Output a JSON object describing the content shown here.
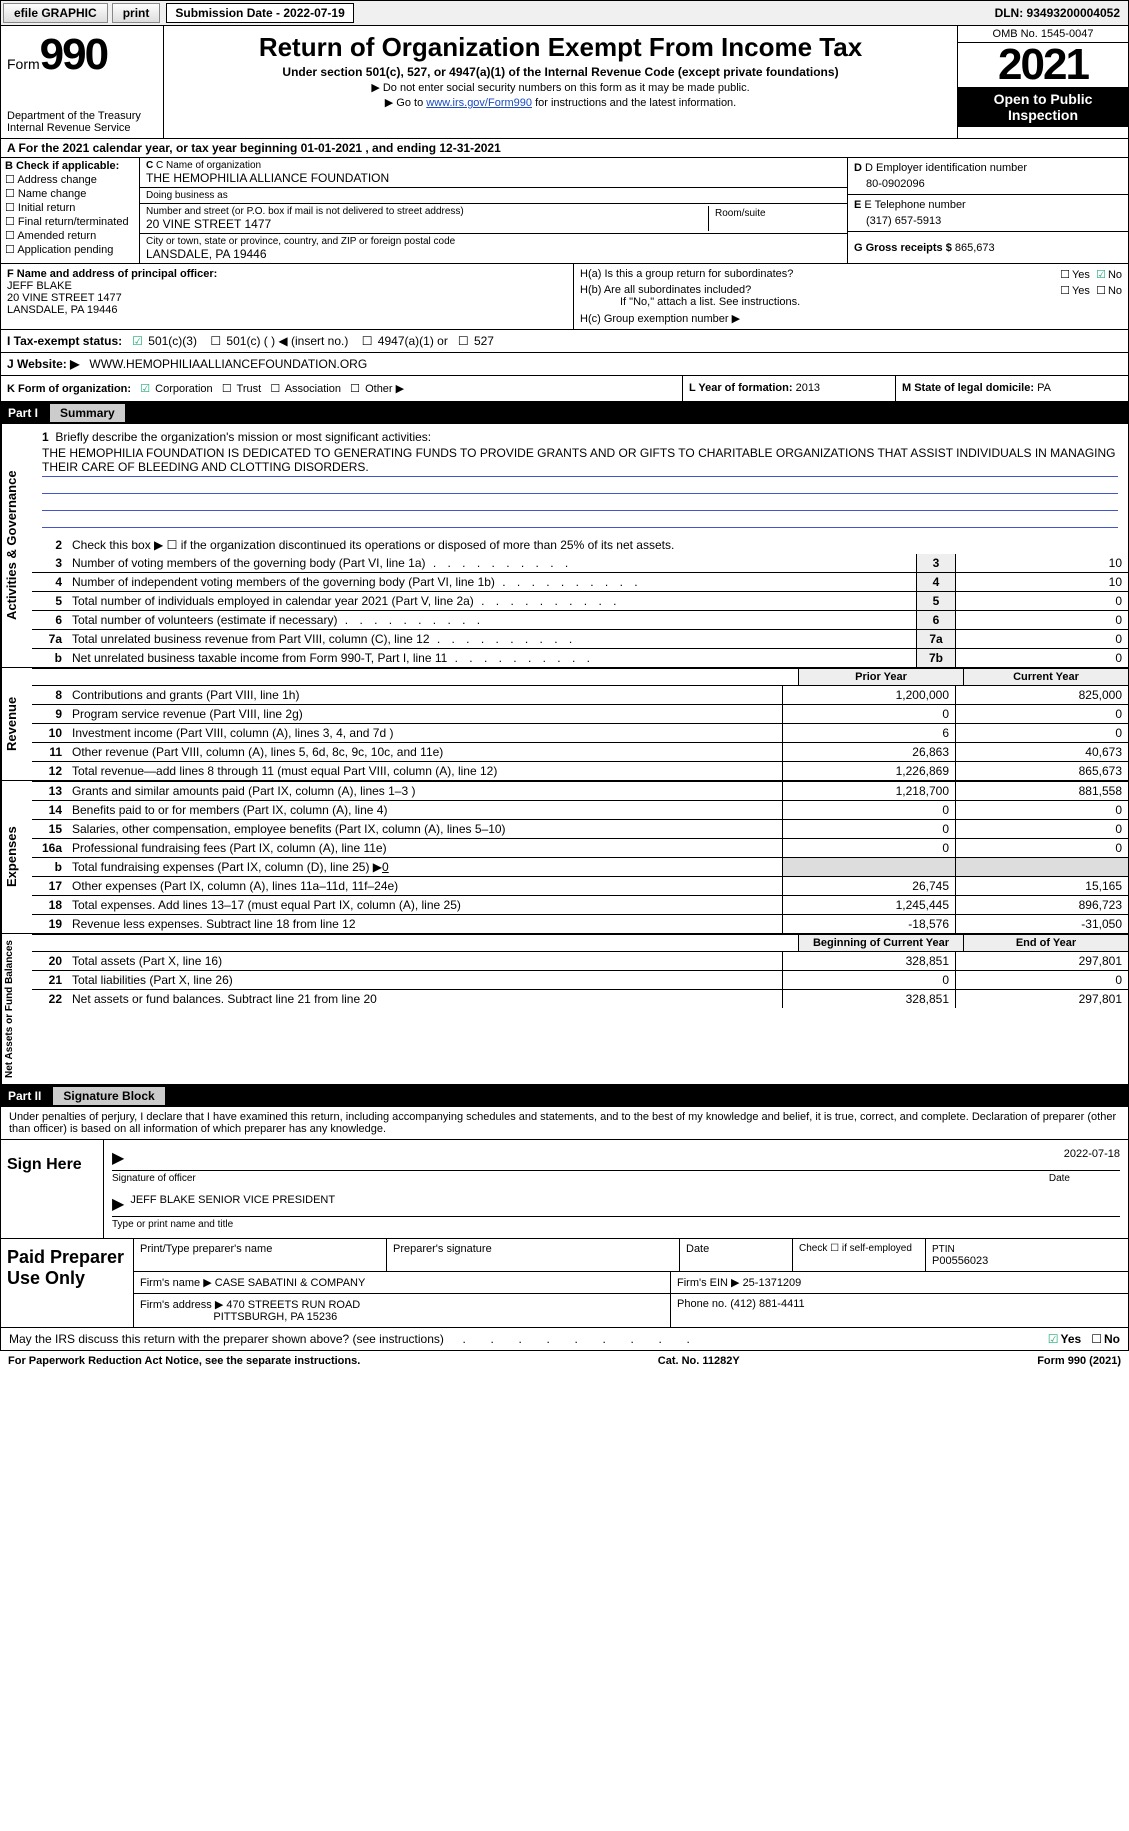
{
  "topbar": {
    "efile": "efile GRAPHIC",
    "print": "print",
    "sub_label": "Submission Date - 2022-07-19",
    "dln": "DLN: 93493200004052"
  },
  "header": {
    "form_word": "Form",
    "form_num": "990",
    "dept": "Department of the Treasury\nInternal Revenue Service",
    "title": "Return of Organization Exempt From Income Tax",
    "sub1": "Under section 501(c), 527, or 4947(a)(1) of the Internal Revenue Code (except private foundations)",
    "sub2a": "Do not enter social security numbers on this form as it may be made public.",
    "sub2b_pre": "Go to ",
    "sub2b_link": "www.irs.gov/Form990",
    "sub2b_post": " for instructions and the latest information.",
    "omb": "OMB No. 1545-0047",
    "year": "2021",
    "open": "Open to Public Inspection"
  },
  "rowA": "A For the 2021 calendar year, or tax year beginning 01-01-2021   , and ending 12-31-2021",
  "sectionB": {
    "label": "B Check if applicable:",
    "opts": [
      "Address change",
      "Name change",
      "Initial return",
      "Final return/terminated",
      "Amended return",
      "Application pending"
    ],
    "c_label": "C Name of organization",
    "org_name": "THE HEMOPHILIA ALLIANCE FOUNDATION",
    "dba_label": "Doing business as",
    "dba": "",
    "addr_label": "Number and street (or P.O. box if mail is not delivered to street address)",
    "room_label": "Room/suite",
    "addr": "20 VINE STREET 1477",
    "city_label": "City or town, state or province, country, and ZIP or foreign postal code",
    "city": "LANSDALE, PA  19446",
    "d_label": "D Employer identification number",
    "ein": "80-0902096",
    "e_label": "E Telephone number",
    "phone": "(317) 657-5913",
    "g_label": "G Gross receipts $",
    "gross": "865,673"
  },
  "sectionFH": {
    "f_label": "F Name and address of principal officer:",
    "officer_name": "JEFF BLAKE",
    "officer_addr1": "20 VINE STREET 1477",
    "officer_addr2": "LANSDALE, PA  19446",
    "h_a": "H(a)  Is this a group return for subordinates?",
    "h_b": "H(b)  Are all subordinates included?",
    "h_b_note": "If \"No,\" attach a list. See instructions.",
    "h_c": "H(c)  Group exemption number ▶",
    "yes": "Yes",
    "no": "No"
  },
  "rowI": {
    "label": "I  Tax-exempt status:",
    "o1": "501(c)(3)",
    "o2": "501(c) (  ) ◀ (insert no.)",
    "o3": "4947(a)(1) or",
    "o4": "527"
  },
  "rowJ": {
    "label": "J  Website: ▶",
    "value": "WWW.HEMOPHILIAALLIANCEFOUNDATION.ORG"
  },
  "rowKLM": {
    "k_label": "K Form of organization:",
    "k_opts": [
      "Corporation",
      "Trust",
      "Association",
      "Other ▶"
    ],
    "l_label": "L Year of formation:",
    "l_val": "2013",
    "m_label": "M State of legal domicile:",
    "m_val": "PA"
  },
  "part1": {
    "header_num": "Part I",
    "header_title": "Summary",
    "section_ag": "Activities & Governance",
    "section_rev": "Revenue",
    "section_exp": "Expenses",
    "section_na": "Net Assets or Fund Balances",
    "line1_label": "Briefly describe the organization's mission or most significant activities:",
    "mission": "THE HEMOPHILIA FOUNDATION IS DEDICATED TO GENERATING FUNDS TO PROVIDE GRANTS AND OR GIFTS TO CHARITABLE ORGANIZATIONS THAT ASSIST INDIVIDUALS IN MANAGING THEIR CARE OF BLEEDING AND CLOTTING DISORDERS.",
    "line2": "Check this box ▶ ☐  if the organization discontinued its operations or disposed of more than 25% of its net assets.",
    "rows_single": [
      {
        "n": "3",
        "d": "Number of voting members of the governing body (Part VI, line 1a)",
        "box": "3",
        "v": "10"
      },
      {
        "n": "4",
        "d": "Number of independent voting members of the governing body (Part VI, line 1b)",
        "box": "4",
        "v": "10"
      },
      {
        "n": "5",
        "d": "Total number of individuals employed in calendar year 2021 (Part V, line 2a)",
        "box": "5",
        "v": "0"
      },
      {
        "n": "6",
        "d": "Total number of volunteers (estimate if necessary)",
        "box": "6",
        "v": "0"
      },
      {
        "n": "7a",
        "d": "Total unrelated business revenue from Part VIII, column (C), line 12",
        "box": "7a",
        "v": "0"
      },
      {
        "n": "b",
        "d": "Net unrelated business taxable income from Form 990-T, Part I, line 11",
        "box": "7b",
        "v": "0"
      }
    ],
    "col_head1": "Prior Year",
    "col_head2": "Current Year",
    "rows_rev": [
      {
        "n": "8",
        "d": "Contributions and grants (Part VIII, line 1h)",
        "v1": "1,200,000",
        "v2": "825,000"
      },
      {
        "n": "9",
        "d": "Program service revenue (Part VIII, line 2g)",
        "v1": "0",
        "v2": "0"
      },
      {
        "n": "10",
        "d": "Investment income (Part VIII, column (A), lines 3, 4, and 7d )",
        "v1": "6",
        "v2": "0"
      },
      {
        "n": "11",
        "d": "Other revenue (Part VIII, column (A), lines 5, 6d, 8c, 9c, 10c, and 11e)",
        "v1": "26,863",
        "v2": "40,673"
      },
      {
        "n": "12",
        "d": "Total revenue—add lines 8 through 11 (must equal Part VIII, column (A), line 12)",
        "v1": "1,226,869",
        "v2": "865,673"
      }
    ],
    "rows_exp": [
      {
        "n": "13",
        "d": "Grants and similar amounts paid (Part IX, column (A), lines 1–3 )",
        "v1": "1,218,700",
        "v2": "881,558"
      },
      {
        "n": "14",
        "d": "Benefits paid to or for members (Part IX, column (A), line 4)",
        "v1": "0",
        "v2": "0"
      },
      {
        "n": "15",
        "d": "Salaries, other compensation, employee benefits (Part IX, column (A), lines 5–10)",
        "v1": "0",
        "v2": "0"
      },
      {
        "n": "16a",
        "d": "Professional fundraising fees (Part IX, column (A), line 11e)",
        "v1": "0",
        "v2": "0"
      }
    ],
    "line_b": "Total fundraising expenses (Part IX, column (D), line 25) ▶",
    "line_b_val": "0",
    "rows_exp2": [
      {
        "n": "17",
        "d": "Other expenses (Part IX, column (A), lines 11a–11d, 11f–24e)",
        "v1": "26,745",
        "v2": "15,165"
      },
      {
        "n": "18",
        "d": "Total expenses. Add lines 13–17 (must equal Part IX, column (A), line 25)",
        "v1": "1,245,445",
        "v2": "896,723"
      },
      {
        "n": "19",
        "d": "Revenue less expenses. Subtract line 18 from line 12",
        "v1": "-18,576",
        "v2": "-31,050"
      }
    ],
    "col_head3": "Beginning of Current Year",
    "col_head4": "End of Year",
    "rows_na": [
      {
        "n": "20",
        "d": "Total assets (Part X, line 16)",
        "v1": "328,851",
        "v2": "297,801"
      },
      {
        "n": "21",
        "d": "Total liabilities (Part X, line 26)",
        "v1": "0",
        "v2": "0"
      },
      {
        "n": "22",
        "d": "Net assets or fund balances. Subtract line 21 from line 20",
        "v1": "328,851",
        "v2": "297,801"
      }
    ]
  },
  "part2": {
    "header_num": "Part II",
    "header_title": "Signature Block",
    "penalty": "Under penalties of perjury, I declare that I have examined this return, including accompanying schedules and statements, and to the best of my knowledge and belief, it is true, correct, and complete. Declaration of preparer (other than officer) is based on all information of which preparer has any knowledge.",
    "sign_here": "Sign Here",
    "sig_officer": "Signature of officer",
    "sig_date": "Date",
    "sig_date_val": "2022-07-18",
    "name_title": "JEFF BLAKE  SENIOR VICE PRESIDENT",
    "name_title_label": "Type or print name and title",
    "paid": "Paid Preparer Use Only",
    "p_name_label": "Print/Type preparer's name",
    "p_sig_label": "Preparer's signature",
    "p_date_label": "Date",
    "p_check_label": "Check ☐ if self-employed",
    "ptin_label": "PTIN",
    "ptin": "P00556023",
    "firm_name_label": "Firm's name    ▶",
    "firm_name": "CASE SABATINI & COMPANY",
    "firm_ein_label": "Firm's EIN ▶",
    "firm_ein": "25-1371209",
    "firm_addr_label": "Firm's address ▶",
    "firm_addr1": "470 STREETS RUN ROAD",
    "firm_addr2": "PITTSBURGH, PA  15236",
    "phone_label": "Phone no.",
    "phone": "(412) 881-4411"
  },
  "discuss": {
    "text": "May the IRS discuss this return with the preparer shown above? (see instructions)",
    "yes": "Yes",
    "no": "No"
  },
  "footer": {
    "left": "For Paperwork Reduction Act Notice, see the separate instructions.",
    "cat": "Cat. No. 11282Y",
    "right": "Form 990 (2021)"
  }
}
